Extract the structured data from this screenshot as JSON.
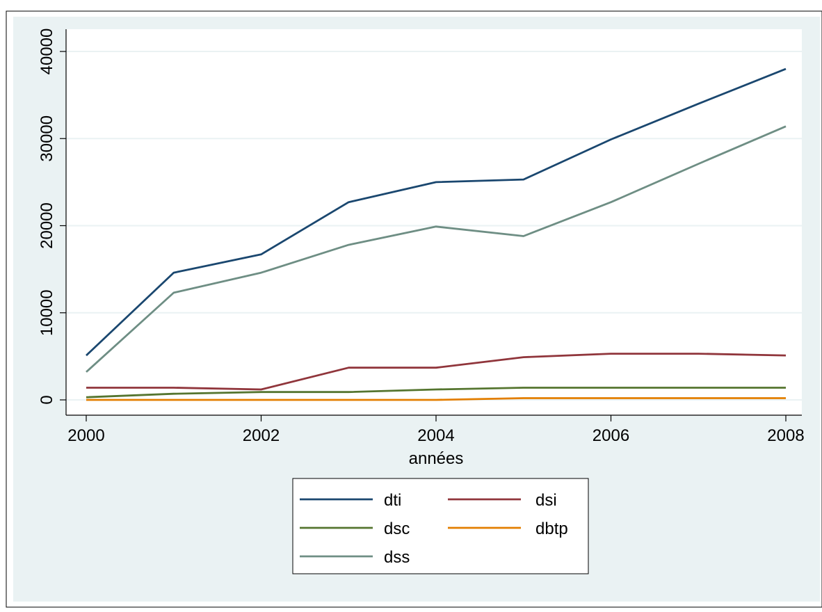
{
  "chart_data": {
    "type": "line",
    "title": "",
    "xlabel": "années",
    "ylabel": "",
    "x": [
      2000,
      2001,
      2002,
      2003,
      2004,
      2005,
      2006,
      2007,
      2008
    ],
    "xlim": [
      2000,
      2008
    ],
    "ylim": [
      0,
      40000
    ],
    "x_ticks": [
      "2000",
      "2002",
      "2004",
      "2006",
      "2008"
    ],
    "y_ticks": [
      "0",
      "10000",
      "20000",
      "30000",
      "40000"
    ],
    "grid": "horizontal",
    "legend_position": "bottom",
    "series": [
      {
        "name": "dti",
        "color": "#1a476f",
        "values": [
          5100,
          14600,
          16700,
          22700,
          25000,
          25300,
          29900,
          34000,
          38000
        ]
      },
      {
        "name": "dsi",
        "color": "#90353b",
        "values": [
          1400,
          1400,
          1200,
          3700,
          3700,
          4900,
          5300,
          5300,
          5100
        ]
      },
      {
        "name": "dsc",
        "color": "#55752f",
        "values": [
          300,
          700,
          900,
          900,
          1200,
          1400,
          1400,
          1400,
          1400
        ]
      },
      {
        "name": "dbtp",
        "color": "#e37e00",
        "values": [
          0,
          0,
          0,
          0,
          0,
          200,
          200,
          200,
          200
        ]
      },
      {
        "name": "dss",
        "color": "#6e8e84",
        "values": [
          3200,
          12300,
          14600,
          17800,
          19900,
          18800,
          22700,
          27100,
          31400
        ]
      }
    ]
  },
  "colors": {
    "background": "#eaf2f3",
    "plot_background": "#ffffff",
    "grid": "#eaf2f3"
  }
}
